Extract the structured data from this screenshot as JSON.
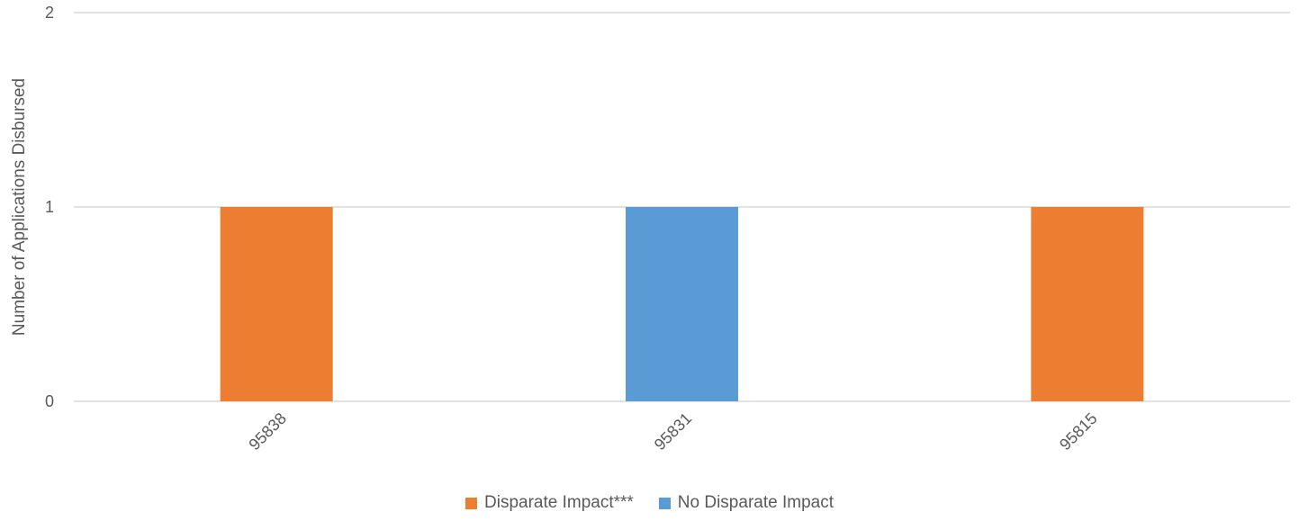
{
  "chart_data": {
    "type": "bar",
    "title": "",
    "xlabel": "",
    "ylabel": "Number of Applications Disbursed",
    "ylim": [
      0,
      2
    ],
    "yticks": [
      0,
      1,
      2
    ],
    "categories": [
      "95838",
      "95831",
      "95815"
    ],
    "series": [
      {
        "name": "Disparate Impact***",
        "color": "#ED7D31",
        "values": [
          1,
          0,
          1
        ]
      },
      {
        "name": "No Disparate Impact",
        "color": "#5B9BD5",
        "values": [
          0,
          1,
          0
        ]
      }
    ],
    "grid": true,
    "legend": "bottom"
  }
}
